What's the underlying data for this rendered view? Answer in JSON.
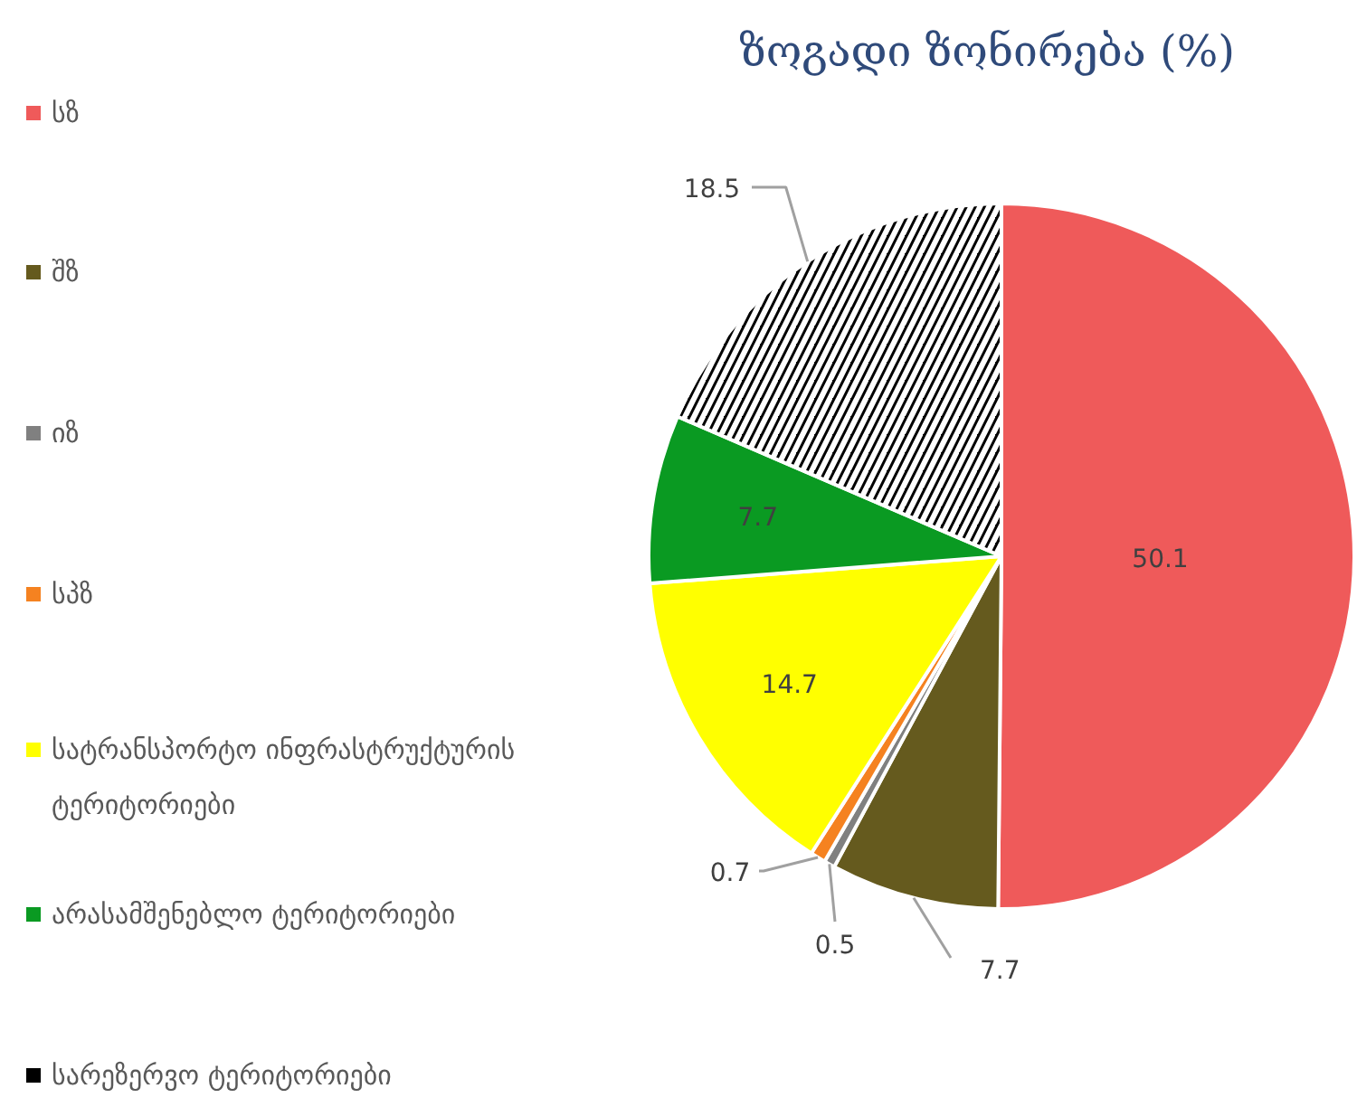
{
  "chart_data": {
    "type": "pie",
    "title": "ზოგადი ზონირება (%)",
    "categories": [
      "სზ",
      "შზ",
      "იზ",
      "სპზ",
      "სატრანსპორტო ინფრასტრუქტურის ტერიტორიები",
      "არასამშენებლო ტერიტორიები",
      "სარეზერვო ტერიტორიები"
    ],
    "values": [
      50.1,
      7.7,
      0.5,
      0.7,
      14.7,
      7.7,
      18.5
    ],
    "colors": [
      "#ef5a5a",
      "#655a1e",
      "#808080",
      "#f58220",
      "#ffff00",
      "#0a9a22",
      "#000000"
    ],
    "data_labels": true,
    "legend": "left"
  }
}
